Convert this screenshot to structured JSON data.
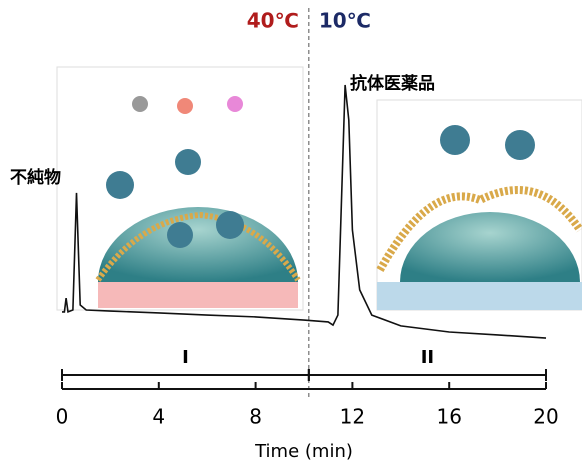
{
  "chart_data": {
    "type": "line",
    "x": [
      0,
      0.1,
      0.17,
      0.25,
      0.45,
      0.6,
      0.75,
      1,
      2,
      4,
      6,
      8,
      10,
      11,
      11.2,
      11.4,
      11.55,
      11.7,
      11.85,
      12,
      12.3,
      12.8,
      14,
      16,
      18,
      20
    ],
    "values": [
      12.5,
      12.5,
      17.7,
      12.5,
      13.2,
      57.4,
      15.1,
      13.2,
      12.8,
      12.1,
      11.3,
      10.6,
      9.4,
      8.7,
      7.5,
      11.3,
      54.7,
      98.1,
      84.9,
      43.4,
      20.8,
      11.3,
      7.2,
      4.9,
      3.8,
      2.6
    ],
    "color": "#111111",
    "xlim": [
      0,
      20
    ],
    "xticks": [
      0,
      4,
      8,
      12,
      16,
      20
    ],
    "ylim": [
      0,
      100
    ],
    "x_label": "Time (min)",
    "divider": {
      "x": 10.2,
      "left_label": "40℃",
      "left_color": "#b01c1c",
      "right_label": "10℃",
      "right_color": "#1c2a66"
    },
    "regions": [
      {
        "label": "I",
        "start": 0,
        "end": 10.2
      },
      {
        "label": "II",
        "start": 10.2,
        "end": 20
      }
    ],
    "annotations": [
      {
        "text": "不純物",
        "x": 0.6
      },
      {
        "text": "抗体医薬品",
        "x": 11.7
      }
    ]
  }
}
